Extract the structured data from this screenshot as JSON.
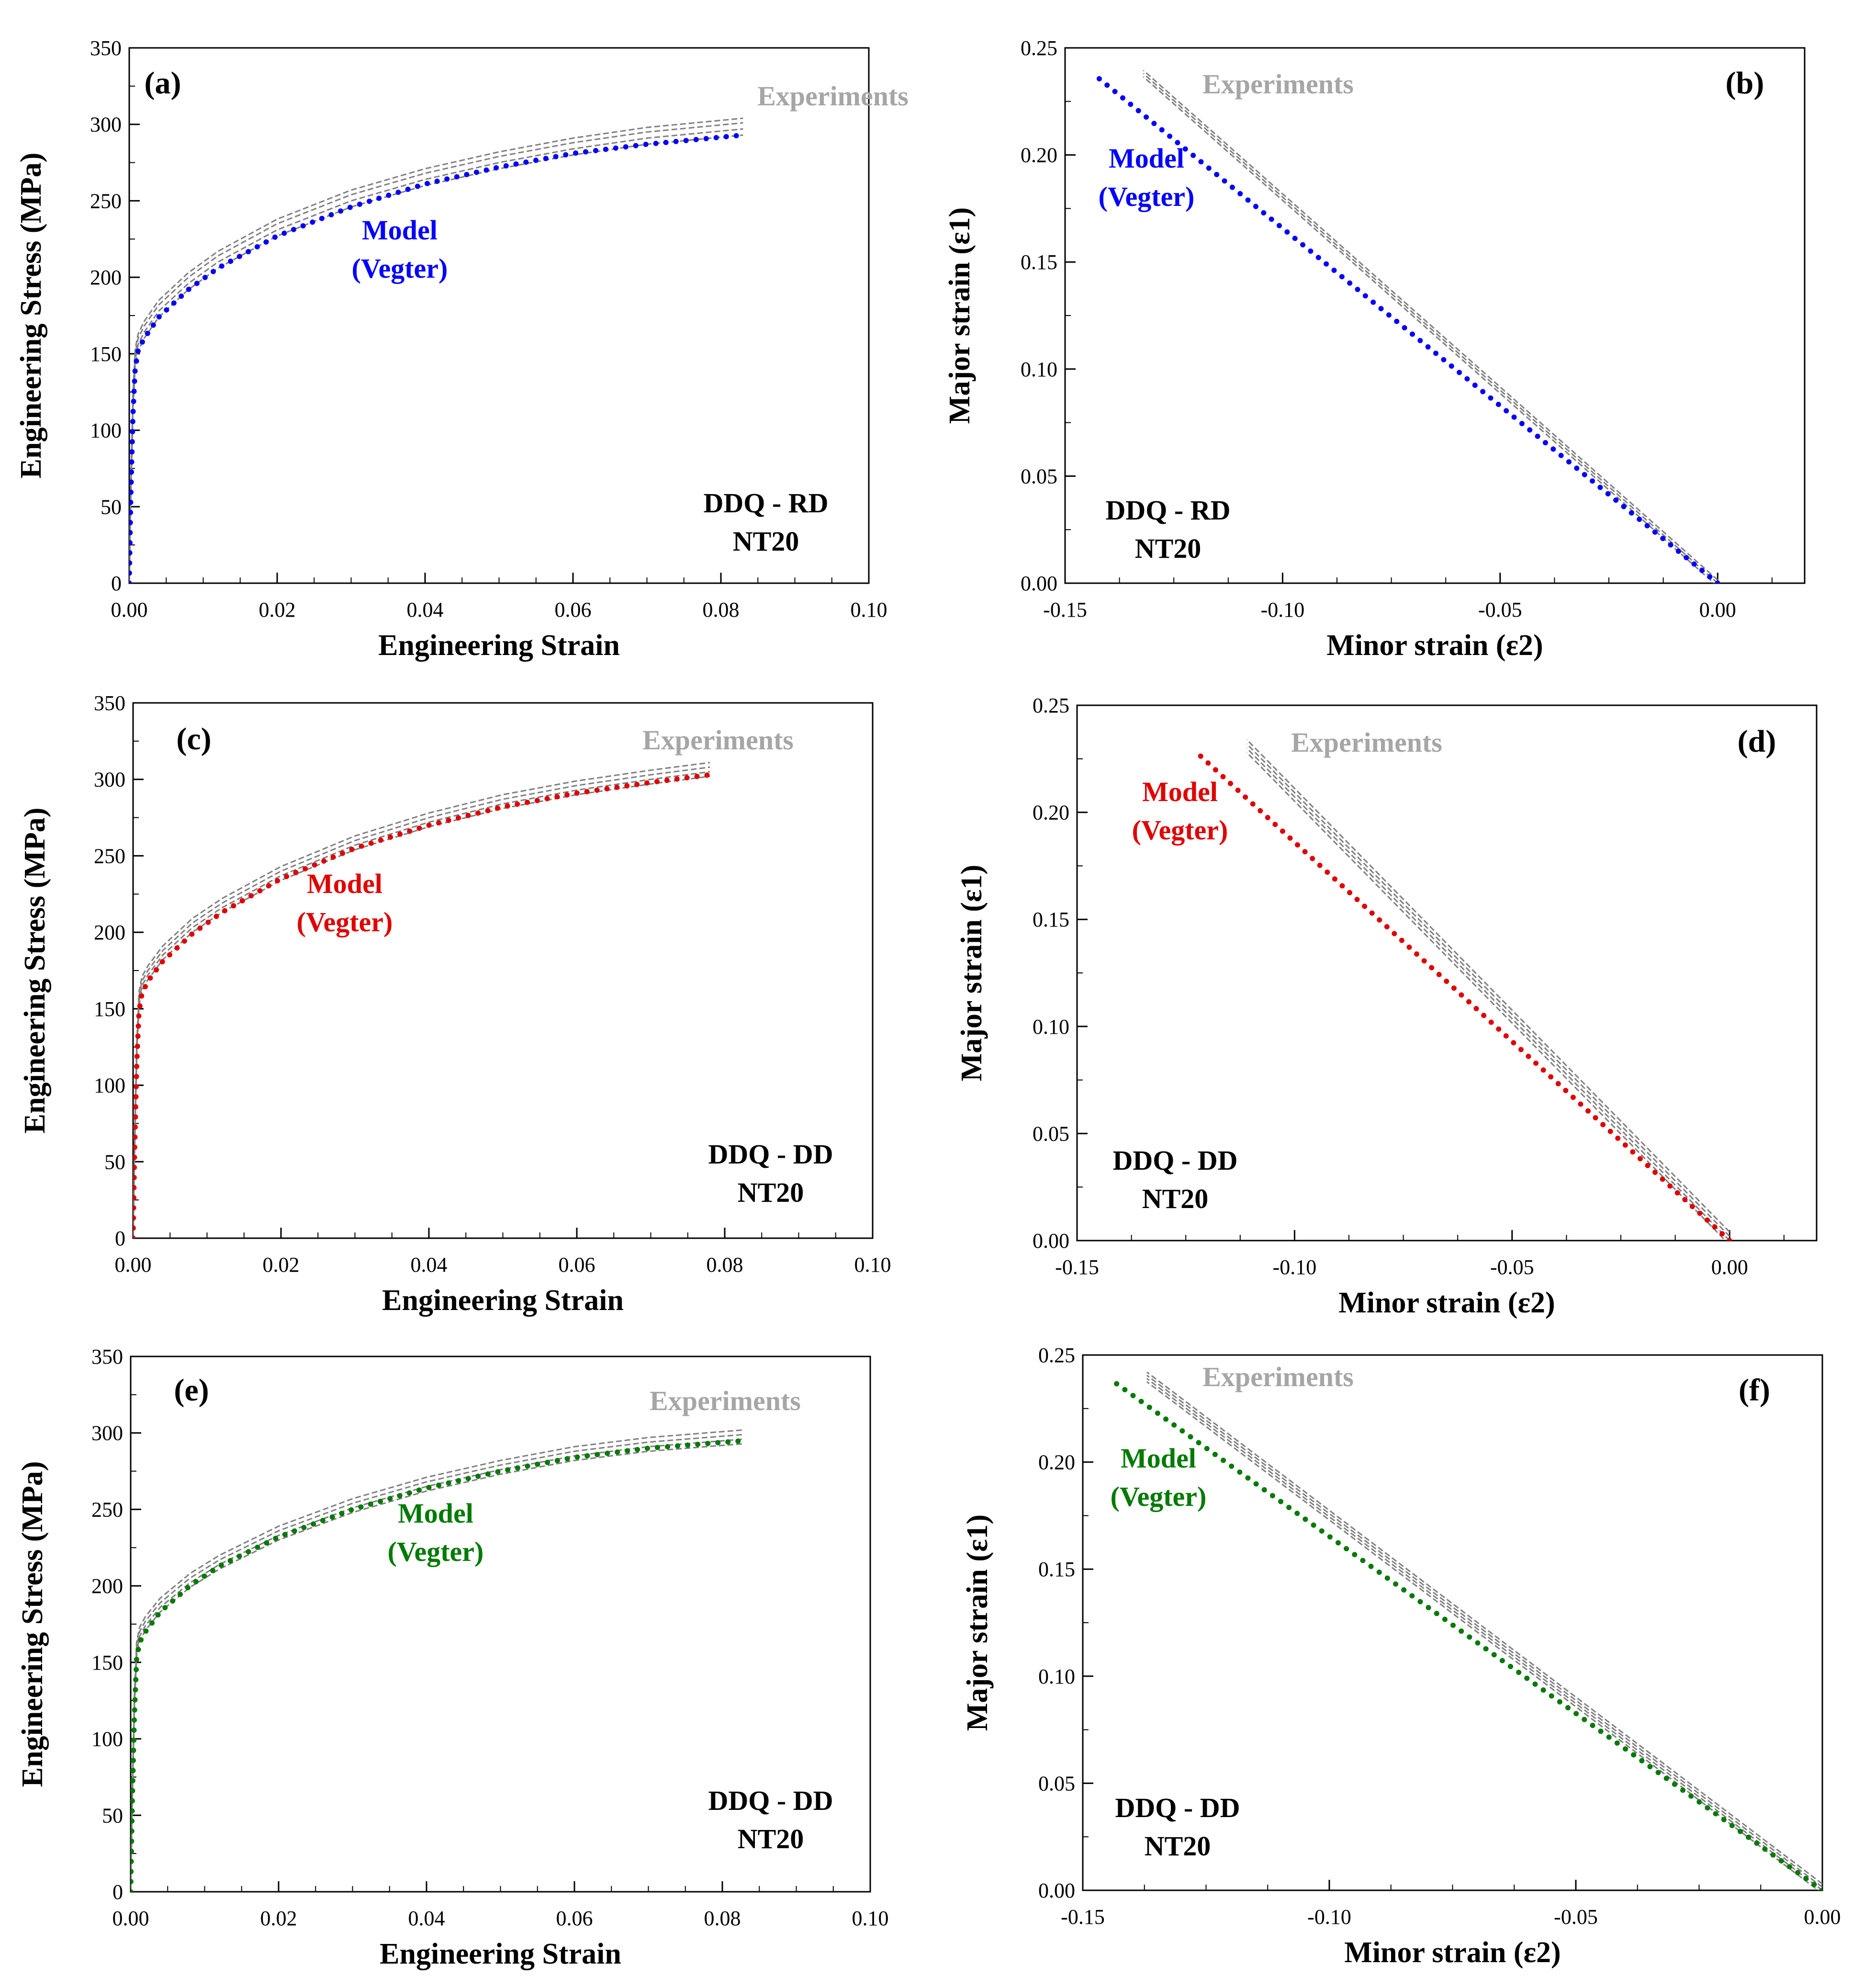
{
  "figure": {
    "panel_layout": "3 rows x 2 columns",
    "colors": {
      "experiments": "#7f7f7f",
      "experiments_label": "#a6a6a6",
      "model_rd": "#0000ff",
      "model_dd": "#e00000",
      "model_dd2": "#007a00",
      "axis": "#000000",
      "text": "#000000"
    }
  },
  "chart_data": [
    {
      "id": "a",
      "type": "line",
      "panel_label": "(a)",
      "xlabel": "Engineering Strain",
      "ylabel": "Engineering Stress (MPa)",
      "xlim": [
        0,
        0.1
      ],
      "ylim": [
        0,
        350
      ],
      "xticks": [
        "0.00",
        "0.02",
        "0.04",
        "0.06",
        "0.08",
        "0.10"
      ],
      "yticks": [
        "0",
        "50",
        "100",
        "150",
        "200",
        "250",
        "300",
        "350"
      ],
      "labels": {
        "experiments": "Experiments",
        "model_line1": "Model",
        "model_line2": "(Vegter)",
        "condition_line1": "DDQ - RD",
        "condition_line2": "NT20"
      },
      "series": [
        {
          "name": "Experiments",
          "style": "dashed",
          "color": "#7f7f7f",
          "x": [
            0,
            0.0002,
            0.0005,
            0.0008,
            0.0012,
            0.002,
            0.004,
            0.008,
            0.012,
            0.02,
            0.03,
            0.04,
            0.05,
            0.06,
            0.07,
            0.083
          ],
          "y": [
            0,
            60,
            120,
            150,
            160,
            168,
            182,
            200,
            214,
            235,
            254,
            268,
            279,
            288,
            295,
            301
          ],
          "offsets": [
            0,
            -4,
            3,
            -8
          ]
        },
        {
          "name": "Model (Vegter)",
          "style": "dotted",
          "color": "#0000ff",
          "x": [
            0,
            0.0002,
            0.0005,
            0.0008,
            0.0012,
            0.002,
            0.004,
            0.008,
            0.012,
            0.02,
            0.03,
            0.04,
            0.05,
            0.06,
            0.07,
            0.083
          ],
          "y": [
            0,
            55,
            110,
            140,
            152,
            160,
            174,
            192,
            206,
            227,
            246,
            261,
            272,
            281,
            287,
            293
          ]
        }
      ]
    },
    {
      "id": "b",
      "type": "line",
      "panel_label": "(b)",
      "xlabel": "Minor strain (ε2)",
      "ylabel": "Major strain (ε1)",
      "xlim": [
        -0.15,
        0.02
      ],
      "ylim": [
        0,
        0.25
      ],
      "xticks": [
        "-0.15",
        "-0.10",
        "-0.05",
        "0.00"
      ],
      "xtick_values": [
        -0.15,
        -0.1,
        -0.05,
        0
      ],
      "yticks": [
        "0.00",
        "0.05",
        "0.10",
        "0.15",
        "0.20",
        "0.25"
      ],
      "labels": {
        "experiments": "Experiments",
        "model_line1": "Model",
        "model_line2": "(Vegter)",
        "condition_line1": "DDQ - RD",
        "condition_line2": "NT20"
      },
      "series": [
        {
          "name": "Experiments",
          "style": "dashed",
          "color": "#7f7f7f",
          "x": [
            0,
            -0.132
          ],
          "y": [
            0,
            0.238
          ],
          "offsets": [
            0,
            -0.0015,
            0.0015
          ]
        },
        {
          "name": "Model (Vegter)",
          "style": "dotted",
          "color": "#0000ff",
          "x": [
            0,
            -0.143
          ],
          "y": [
            0,
            0.237
          ]
        }
      ]
    },
    {
      "id": "c",
      "type": "line",
      "panel_label": "(c)",
      "xlabel": "Engineering Strain",
      "ylabel": "Engineering Stress (MPa)",
      "xlim": [
        0,
        0.1
      ],
      "ylim": [
        0,
        350
      ],
      "xticks": [
        "0.00",
        "0.02",
        "0.04",
        "0.06",
        "0.08",
        "0.10"
      ],
      "yticks": [
        "0",
        "50",
        "100",
        "150",
        "200",
        "250",
        "300",
        "350"
      ],
      "labels": {
        "experiments": "Experiments",
        "model_line1": "Model",
        "model_line2": "(Vegter)",
        "condition_line1": "DDQ - DD",
        "condition_line2": "NT20"
      },
      "series": [
        {
          "name": "Experiments",
          "style": "dashed",
          "color": "#7f7f7f",
          "x": [
            0,
            0.0002,
            0.0005,
            0.0008,
            0.0012,
            0.002,
            0.004,
            0.008,
            0.012,
            0.02,
            0.03,
            0.04,
            0.05,
            0.06,
            0.07,
            0.078
          ],
          "y": [
            0,
            60,
            125,
            158,
            168,
            175,
            188,
            206,
            219,
            240,
            260,
            275,
            287,
            296,
            303,
            308
          ],
          "offsets": [
            0,
            -3,
            3,
            -6
          ]
        },
        {
          "name": "Model (Vegter)",
          "style": "dotted",
          "color": "#e00000",
          "x": [
            0,
            0.0002,
            0.0005,
            0.0008,
            0.0012,
            0.002,
            0.004,
            0.008,
            0.012,
            0.02,
            0.03,
            0.04,
            0.05,
            0.06,
            0.07,
            0.078
          ],
          "y": [
            0,
            55,
            115,
            148,
            160,
            168,
            181,
            199,
            213,
            235,
            255,
            270,
            282,
            291,
            298,
            303
          ]
        }
      ]
    },
    {
      "id": "d",
      "type": "line",
      "panel_label": "(d)",
      "xlabel": "Minor strain (ε2)",
      "ylabel": "Major strain (ε1)",
      "xlim": [
        -0.15,
        0.02
      ],
      "ylim": [
        0,
        0.25
      ],
      "xticks": [
        "-0.15",
        "-0.10",
        "-0.05",
        "0.00"
      ],
      "xtick_values": [
        -0.15,
        -0.1,
        -0.05,
        0
      ],
      "yticks": [
        "0.00",
        "0.05",
        "0.10",
        "0.15",
        "0.20",
        "0.25"
      ],
      "labels": {
        "experiments": "Experiments",
        "model_line1": "Model",
        "model_line2": "(Vegter)",
        "condition_line1": "DDQ - DD",
        "condition_line2": "NT20"
      },
      "series": [
        {
          "name": "Experiments",
          "style": "dashed",
          "color": "#7f7f7f",
          "x": [
            0,
            -0.111
          ],
          "y": [
            0,
            0.23
          ],
          "offsets": [
            0,
            -0.002,
            0.002,
            0.004
          ]
        },
        {
          "name": "Model (Vegter)",
          "style": "dotted",
          "color": "#e00000",
          "x": [
            0,
            -0.122
          ],
          "y": [
            0,
            0.227
          ]
        }
      ]
    },
    {
      "id": "e",
      "type": "line",
      "panel_label": "(e)",
      "xlabel": "Engineering Strain",
      "ylabel": "Engineering Stress (MPa)",
      "xlim": [
        0,
        0.1
      ],
      "ylim": [
        0,
        350
      ],
      "xticks": [
        "0.00",
        "0.02",
        "0.04",
        "0.06",
        "0.08",
        "0.10"
      ],
      "yticks": [
        "0",
        "50",
        "100",
        "150",
        "200",
        "250",
        "300",
        "350"
      ],
      "labels": {
        "experiments": "Experiments",
        "model_line1": "Model",
        "model_line2": "(Vegter)",
        "condition_line1": "DDQ - DD",
        "condition_line2": "NT20"
      },
      "series": [
        {
          "name": "Experiments",
          "style": "dashed",
          "color": "#7f7f7f",
          "x": [
            0,
            0.0002,
            0.0005,
            0.0008,
            0.0012,
            0.002,
            0.004,
            0.008,
            0.012,
            0.02,
            0.03,
            0.04,
            0.05,
            0.06,
            0.07,
            0.083
          ],
          "y": [
            0,
            60,
            125,
            160,
            170,
            177,
            189,
            205,
            217,
            236,
            254,
            268,
            279,
            288,
            294,
            299
          ],
          "offsets": [
            0,
            -3,
            3,
            -6
          ]
        },
        {
          "name": "Model (Vegter)",
          "style": "dotted",
          "color": "#007a00",
          "x": [
            0,
            0.0002,
            0.0005,
            0.0008,
            0.0012,
            0.002,
            0.004,
            0.008,
            0.012,
            0.02,
            0.03,
            0.04,
            0.05,
            0.06,
            0.07,
            0.083
          ],
          "y": [
            0,
            55,
            115,
            152,
            163,
            170,
            183,
            200,
            213,
            232,
            250,
            264,
            275,
            284,
            290,
            295
          ]
        }
      ]
    },
    {
      "id": "f",
      "type": "line",
      "panel_label": "(f)",
      "xlabel": "Minor strain (ε2)",
      "ylabel": "Major strain (ε1)",
      "xlim": [
        -0.15,
        0
      ],
      "ylim": [
        0,
        0.25
      ],
      "xticks": [
        "-0.15",
        "-0.10",
        "-0.05",
        "0.00"
      ],
      "xtick_values": [
        -0.15,
        -0.1,
        -0.05,
        0
      ],
      "yticks": [
        "0.00",
        "0.05",
        "0.10",
        "0.15",
        "0.20",
        "0.25"
      ],
      "labels": {
        "experiments": "Experiments",
        "model_line1": "Model",
        "model_line2": "(Vegter)",
        "condition_line1": "DDQ - DD",
        "condition_line2": "NT20"
      },
      "series": [
        {
          "name": "Experiments",
          "style": "dashed",
          "color": "#7f7f7f",
          "x": [
            0,
            -0.137
          ],
          "y": [
            0,
            0.239
          ],
          "offsets": [
            0,
            -0.0015,
            0.0015,
            0.003
          ]
        },
        {
          "name": "Model (Vegter)",
          "style": "dotted",
          "color": "#007a00",
          "x": [
            0,
            -0.144
          ],
          "y": [
            0,
            0.238
          ]
        }
      ]
    }
  ]
}
